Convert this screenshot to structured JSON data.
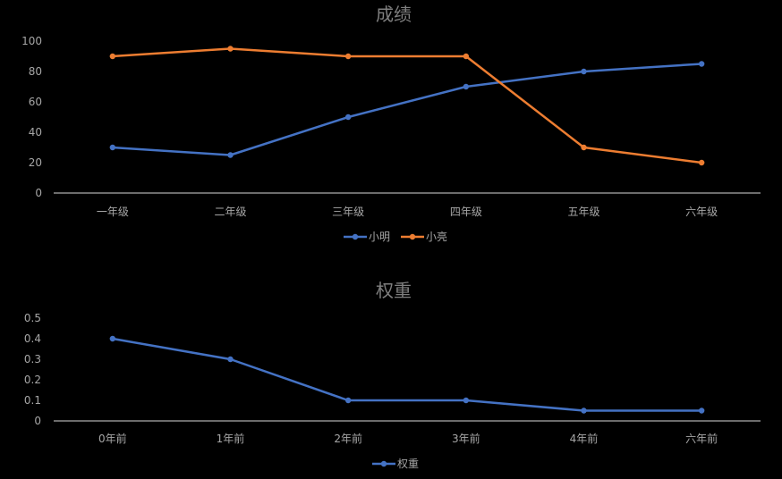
{
  "chart_data": [
    {
      "type": "line",
      "title": "成绩",
      "categories": [
        "一年级",
        "二年级",
        "三年级",
        "四年级",
        "五年级",
        "六年级"
      ],
      "ylim": [
        0,
        100
      ],
      "yticks": [
        "0",
        "20",
        "40",
        "60",
        "80",
        "100"
      ],
      "grid": false,
      "legend_position": "bottom",
      "series": [
        {
          "name": "小明",
          "color": "#4472c4",
          "values": [
            30,
            25,
            50,
            70,
            80,
            85
          ]
        },
        {
          "name": "小亮",
          "color": "#ed7d31",
          "values": [
            90,
            95,
            90,
            90,
            30,
            20
          ]
        }
      ]
    },
    {
      "type": "line",
      "title": "权重",
      "categories": [
        "0年前",
        "1年前",
        "2年前",
        "3年前",
        "4年前",
        "六年前"
      ],
      "ylim": [
        0,
        0.5
      ],
      "yticks": [
        "0",
        "0.1",
        "0.2",
        "0.3",
        "0.4",
        "0.5"
      ],
      "grid": false,
      "legend_position": "bottom",
      "series": [
        {
          "name": "权重",
          "color": "#4472c4",
          "values": [
            0.4,
            0.3,
            0.1,
            0.1,
            0.05,
            0.05
          ]
        }
      ]
    }
  ]
}
